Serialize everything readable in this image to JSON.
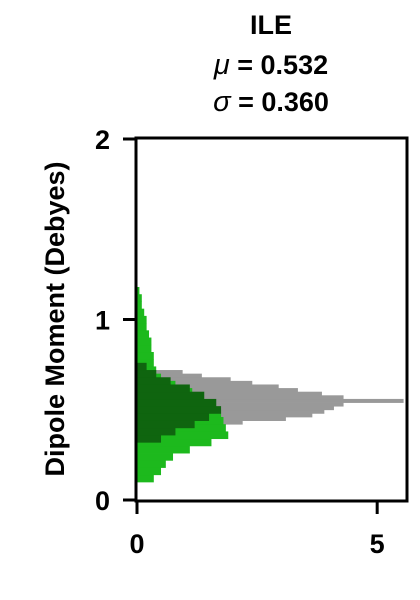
{
  "chart_data": {
    "type": "histogram",
    "orientation": "horizontal",
    "title": {
      "line1": "ILE",
      "mu_symbol": "μ",
      "mu_text": " = 0.532",
      "sigma_symbol": "σ",
      "sigma_text": " = 0.360"
    },
    "ylabel": "Dipole Moment (Debyes)",
    "xlabel": "",
    "xlim": [
      0,
      5.6
    ],
    "ylim": [
      0,
      2
    ],
    "x_ticks": [
      0,
      5
    ],
    "y_ticks": [
      0,
      1,
      2
    ],
    "x_tick_labels": [
      "0",
      "5"
    ],
    "y_tick_labels": [
      "0",
      "1",
      "2"
    ],
    "colors": {
      "gray": "#999999",
      "light_green": "#1db91d",
      "dark_green": "#0f650f"
    },
    "bin_width": 0.02,
    "series": [
      {
        "color_key": "gray",
        "bins": [
          [
            0.36,
            0.38,
            1.25
          ],
          [
            0.38,
            0.4,
            1.45
          ],
          [
            0.4,
            0.42,
            1.75
          ],
          [
            0.42,
            0.44,
            2.2
          ],
          [
            0.44,
            0.46,
            3.1
          ],
          [
            0.46,
            0.48,
            3.65
          ],
          [
            0.48,
            0.5,
            3.9
          ],
          [
            0.5,
            0.52,
            4.1
          ],
          [
            0.52,
            0.54,
            4.3
          ],
          [
            0.54,
            0.56,
            5.55
          ],
          [
            0.56,
            0.58,
            4.3
          ],
          [
            0.58,
            0.6,
            3.85
          ],
          [
            0.6,
            0.62,
            3.35
          ],
          [
            0.62,
            0.64,
            2.95
          ],
          [
            0.64,
            0.66,
            2.4
          ],
          [
            0.66,
            0.68,
            1.95
          ],
          [
            0.68,
            0.7,
            1.35
          ],
          [
            0.7,
            0.72,
            0.95
          ]
        ]
      },
      {
        "color_key": "light_green",
        "bins": [
          [
            0.1,
            0.14,
            0.35
          ],
          [
            0.14,
            0.18,
            0.5
          ],
          [
            0.18,
            0.22,
            0.6
          ],
          [
            0.22,
            0.26,
            0.75
          ],
          [
            0.26,
            0.3,
            1.1
          ],
          [
            0.3,
            0.34,
            1.55
          ],
          [
            0.34,
            0.38,
            1.9
          ],
          [
            0.38,
            0.42,
            1.85
          ],
          [
            0.42,
            0.46,
            1.8
          ],
          [
            0.46,
            0.5,
            1.75
          ],
          [
            0.5,
            0.54,
            1.6
          ],
          [
            0.54,
            0.58,
            1.35
          ],
          [
            0.58,
            0.62,
            1.15
          ],
          [
            0.62,
            0.66,
            0.8
          ],
          [
            0.66,
            0.7,
            0.5
          ],
          [
            0.7,
            0.74,
            0.4
          ],
          [
            0.74,
            0.78,
            0.35
          ],
          [
            0.78,
            0.82,
            0.35
          ],
          [
            0.82,
            0.86,
            0.3
          ],
          [
            0.86,
            0.9,
            0.3
          ],
          [
            0.9,
            0.94,
            0.25
          ],
          [
            0.94,
            0.98,
            0.2
          ],
          [
            0.98,
            1.02,
            0.2
          ],
          [
            1.02,
            1.06,
            0.15
          ],
          [
            1.06,
            1.1,
            0.1
          ],
          [
            1.1,
            1.14,
            0.1
          ],
          [
            1.14,
            1.18,
            0.05
          ]
        ]
      },
      {
        "color_key": "dark_green",
        "bins": [
          [
            0.32,
            0.36,
            0.5
          ],
          [
            0.36,
            0.4,
            0.8
          ],
          [
            0.4,
            0.44,
            1.2
          ],
          [
            0.44,
            0.48,
            1.5
          ],
          [
            0.48,
            0.52,
            1.75
          ],
          [
            0.52,
            0.56,
            1.65
          ],
          [
            0.56,
            0.6,
            1.4
          ],
          [
            0.6,
            0.64,
            1.1
          ],
          [
            0.64,
            0.68,
            0.7
          ],
          [
            0.68,
            0.72,
            0.4
          ],
          [
            0.72,
            0.76,
            0.2
          ]
        ]
      }
    ]
  }
}
